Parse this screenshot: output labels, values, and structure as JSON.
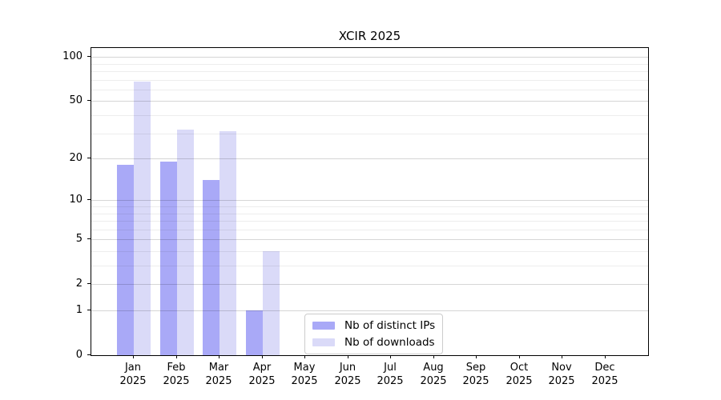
{
  "title": "XCIR 2025",
  "chart_data": {
    "type": "bar",
    "title": "XCIR 2025",
    "categories": [
      "Jan 2025",
      "Feb 2025",
      "Mar 2025",
      "Apr 2025",
      "May 2025",
      "Jun 2025",
      "Jul 2025",
      "Aug 2025",
      "Sep 2025",
      "Oct 2025",
      "Nov 2025",
      "Dec 2025"
    ],
    "series": [
      {
        "name": "Nb of distinct IPs",
        "color": "#a9a9f7",
        "values": [
          18,
          19,
          14,
          1,
          0,
          0,
          0,
          0,
          0,
          0,
          0,
          0
        ]
      },
      {
        "name": "Nb of downloads",
        "color": "#dadaf8",
        "values": [
          68,
          32,
          31,
          4,
          0,
          0,
          0,
          0,
          0,
          0,
          0,
          0
        ]
      }
    ],
    "xlabel": "",
    "ylabel": "",
    "yscale": "log1p",
    "ylim": [
      0,
      115
    ],
    "y_major_ticks": [
      0,
      1,
      2,
      5,
      10,
      20,
      50,
      100
    ],
    "y_minor_gridlines": [
      3,
      4,
      6,
      7,
      8,
      9,
      30,
      40,
      60,
      70,
      80,
      90
    ],
    "grid": "on",
    "grid_above_bars": true,
    "legend_position": "lower center-right inside plot",
    "bar_width_fraction": 0.4,
    "spine_color": "#000000"
  }
}
